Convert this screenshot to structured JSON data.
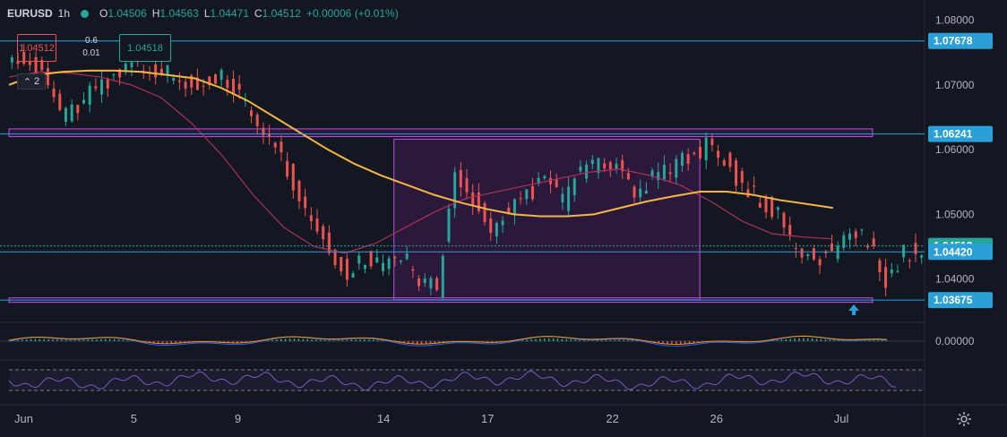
{
  "legend": {
    "symbol": "EURUSD",
    "interval": "1h",
    "open_label": "O",
    "open": "1.04506",
    "high_label": "H",
    "high": "1.04563",
    "low_label": "L",
    "low": "1.04471",
    "close_label": "C",
    "close": "1.04512",
    "change": "+0.00006 (+0.01%)"
  },
  "trade": {
    "sell": "1.04512",
    "buy": "1.04518",
    "spread_top": "0.6",
    "spread_bottom": "0.01",
    "collapse_count": "2"
  },
  "colors": {
    "bg": "#131722",
    "up": "#26a69a",
    "down": "#ef5350",
    "ma_slow": "#f5b642",
    "ma_fast": "#b0305a",
    "zone": "#9c27b0",
    "hline": "#2a9fd8",
    "rsi": "#7e57c2",
    "macd": "#2962ff",
    "signal": "#ff9800"
  },
  "chart_data": {
    "type": "candlestick",
    "ylim": [
      1.034,
      1.082
    ],
    "price_ticks": [
      "1.08000",
      "1.07000",
      "1.06000",
      "1.05000",
      "1.04000"
    ],
    "price_tick_values": [
      1.08,
      1.07,
      1.06,
      1.05,
      1.04
    ],
    "x_ticks": [
      "Jun",
      "5",
      "9",
      "14",
      "17",
      "22",
      "26",
      "Jul"
    ],
    "x_tick_values": [
      0,
      6,
      11,
      18,
      23,
      29,
      34,
      40
    ],
    "xlim": [
      0,
      44
    ],
    "price_labels": [
      {
        "label": "1.07678",
        "value": 1.07678,
        "color": "#2a9fd8"
      },
      {
        "label": "1.06241",
        "value": 1.06241,
        "color": "#2a9fd8"
      },
      {
        "label": "1.04512",
        "value": 1.04512,
        "color": "#26a69a"
      },
      {
        "label": "1.04420",
        "value": 1.0442,
        "color": "#2a9fd8"
      },
      {
        "label": "1.03675",
        "value": 1.03675,
        "color": "#2a9fd8"
      }
    ],
    "zones": [
      {
        "from": 1.062,
        "to": 1.0632,
        "x0": 0,
        "x1": 41.5
      },
      {
        "from": 1.0364,
        "to": 1.0371,
        "x0": 0,
        "x1": 41.5
      },
      {
        "from": 1.0368,
        "to": 1.0616,
        "x0": 18.5,
        "x1": 33.2
      }
    ],
    "close": [
      1.0745,
      1.072,
      1.065,
      1.0665,
      1.0695,
      1.0715,
      1.073,
      1.0725,
      1.0718,
      1.0705,
      1.07,
      1.071,
      1.069,
      1.0628,
      1.0615,
      1.055,
      1.049,
      1.0448,
      1.041,
      1.0432,
      1.0418,
      1.0438,
      1.04,
      1.0385,
      1.056,
      1.052,
      1.048,
      1.051,
      1.053,
      1.055,
      1.052,
      1.057,
      1.058,
      1.0578,
      1.052,
      1.0555,
      1.057,
      1.0585,
      1.0605,
      1.059,
      1.054,
      1.0525,
      1.05,
      1.044,
      1.043,
      1.0445,
      1.047,
      1.046,
      1.04,
      1.044,
      1.0451
    ],
    "ma_slow": [
      1.07,
      1.0715,
      1.072,
      1.0722,
      1.0722,
      1.072,
      1.0715,
      1.071,
      1.0695,
      1.0675,
      1.065,
      1.0625,
      1.06,
      1.0578,
      1.056,
      1.0545,
      1.053,
      1.0518,
      1.0508,
      1.05,
      1.0497,
      1.0497,
      1.05,
      1.051,
      1.052,
      1.0528,
      1.0535,
      1.0535,
      1.053,
      1.0522,
      1.0516,
      1.051
    ],
    "ma_fast": [
      1.0712,
      1.072,
      1.0718,
      1.0712,
      1.07,
      1.068,
      1.064,
      1.059,
      1.053,
      1.048,
      1.045,
      1.044,
      1.0455,
      1.048,
      1.0505,
      1.0525,
      1.0535,
      1.0545,
      1.0555,
      1.0565,
      1.057,
      1.056,
      1.0545,
      1.052,
      1.049,
      1.047,
      1.0465,
      1.0462
    ],
    "macd_zero_label": "0.00000"
  }
}
